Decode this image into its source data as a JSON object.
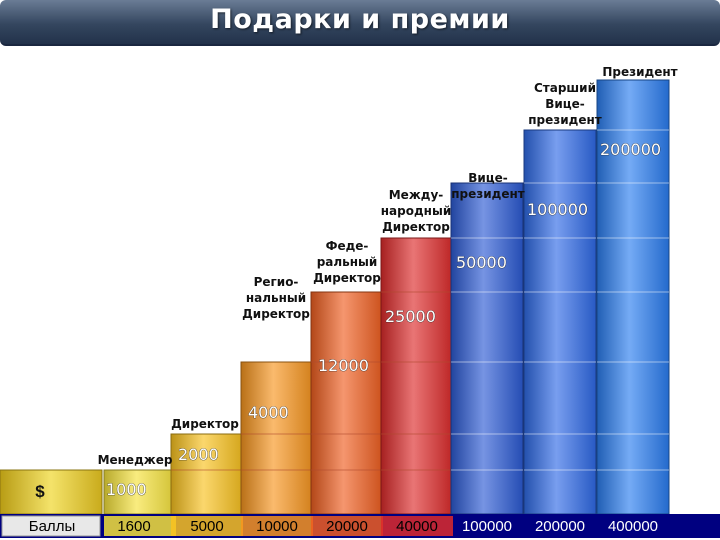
{
  "header": {
    "title": "Подарки и премии"
  },
  "chart_data": {
    "type": "bar",
    "title": "",
    "row_labels": {
      "currency": "$",
      "points": "Баллы"
    },
    "categories": [
      "Менеджер",
      "Директор",
      "Регио-нальный Директор",
      "Феде-ральный Директор",
      "Между-народный Директор",
      "Вице-президент",
      "Старший Вице-президент",
      "Президент"
    ],
    "series": [
      {
        "values": [
          1000,
          2000,
          4000,
          12000,
          25000,
          50000,
          100000,
          200000
        ]
      },
      {
        "values": [
          1600,
          5000,
          10000,
          20000,
          40000,
          100000,
          200000,
          400000
        ]
      }
    ],
    "colors": {
      "title_bar": "#34465f",
      "bars": [
        "#f5e23a",
        "#f9c21f",
        "#f7951e",
        "#ef5e20",
        "#dd2a2a",
        "#2c5bd4",
        "#2f6ae6",
        "#2a7df0"
      ],
      "points_row_bg": "#000080",
      "points_text": "#ffffff"
    }
  }
}
